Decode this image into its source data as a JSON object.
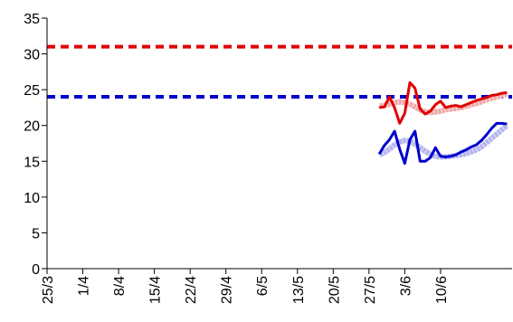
{
  "chart_data": {
    "type": "line",
    "title": "",
    "xlabel": "",
    "ylabel": "",
    "ylim": [
      0,
      35
    ],
    "yticks": [
      0,
      5,
      10,
      15,
      20,
      25,
      30,
      35
    ],
    "xlim": [
      "25/3",
      "24/6"
    ],
    "xtick_labels": [
      "25/3",
      "1/4",
      "8/4",
      "15/4",
      "22/4",
      "29/4",
      "6/5",
      "13/5",
      "20/5",
      "27/5",
      "3/6",
      "10/6"
    ],
    "xtick_dates": [
      "25/3",
      "1/4",
      "8/4",
      "15/4",
      "22/4",
      "29/4",
      "6/5",
      "13/5",
      "20/5",
      "27/5",
      "3/6",
      "10/6"
    ],
    "grid": false,
    "legend": "none",
    "reference_lines": [
      {
        "y": 31,
        "color": "#e00000",
        "style": "dashed"
      },
      {
        "y": 24,
        "color": "#0000cc",
        "style": "dashed"
      }
    ],
    "series": [
      {
        "color": "#f0a8a8",
        "style": "thick-hatched",
        "x": [
          "29/5",
          "30/5",
          "31/5",
          "1/6",
          "2/6",
          "3/6",
          "4/6",
          "5/6",
          "6/6",
          "7/6",
          "8/6",
          "9/6",
          "10/6",
          "11/6",
          "12/6",
          "13/6",
          "14/6",
          "15/6",
          "16/6",
          "17/6",
          "18/6",
          "19/6",
          "20/6",
          "21/6",
          "22/6",
          "23/6"
        ],
        "y": [
          22.7,
          22.8,
          23.0,
          23.2,
          23.3,
          23.2,
          23.0,
          22.6,
          22.2,
          21.9,
          21.8,
          21.9,
          22.0,
          22.2,
          22.3,
          22.4,
          22.5,
          22.7,
          22.9,
          23.1,
          23.3,
          23.6,
          23.8,
          24.0,
          24.2,
          24.4
        ]
      },
      {
        "color": "#e00000",
        "style": "solid",
        "x": [
          "29/5",
          "30/5",
          "31/5",
          "1/6",
          "2/6",
          "3/6",
          "4/6",
          "5/6",
          "6/6",
          "7/6",
          "8/6",
          "9/6",
          "10/6",
          "11/6",
          "12/6",
          "13/6",
          "14/6",
          "15/6",
          "16/6",
          "17/6",
          "18/6",
          "19/6",
          "20/6",
          "21/6",
          "22/6",
          "23/6"
        ],
        "y": [
          22.5,
          22.6,
          24.0,
          22.5,
          20.3,
          21.7,
          26.0,
          25.2,
          22.3,
          21.6,
          22.0,
          22.9,
          23.4,
          22.5,
          22.7,
          22.8,
          22.6,
          22.9,
          23.2,
          23.5,
          23.7,
          23.9,
          24.2,
          24.3,
          24.5,
          24.6
        ]
      },
      {
        "color": "#b4b4ee",
        "style": "thick-hatched",
        "x": [
          "29/5",
          "30/5",
          "31/5",
          "1/6",
          "2/6",
          "3/6",
          "4/6",
          "5/6",
          "6/6",
          "7/6",
          "8/6",
          "9/6",
          "10/6",
          "11/6",
          "12/6",
          "13/6",
          "14/6",
          "15/6",
          "16/6",
          "17/6",
          "18/6",
          "19/6",
          "20/6",
          "21/6",
          "22/6",
          "23/6"
        ],
        "y": [
          15.9,
          16.2,
          16.7,
          17.3,
          17.7,
          17.9,
          17.8,
          17.4,
          16.9,
          16.4,
          16.0,
          15.7,
          15.6,
          15.6,
          15.7,
          15.8,
          15.9,
          16.1,
          16.3,
          16.6,
          17.0,
          17.6,
          18.2,
          18.8,
          19.4,
          20.0
        ]
      },
      {
        "color": "#0000cc",
        "style": "solid",
        "x": [
          "29/5",
          "30/5",
          "31/5",
          "1/6",
          "2/6",
          "3/6",
          "4/6",
          "5/6",
          "6/6",
          "7/6",
          "8/6",
          "9/6",
          "10/6",
          "11/6",
          "12/6",
          "13/6",
          "14/6",
          "15/6",
          "16/6",
          "17/6",
          "18/6",
          "19/6",
          "20/6",
          "21/6",
          "22/6",
          "23/6"
        ],
        "y": [
          16.0,
          17.2,
          18.0,
          19.2,
          16.7,
          14.7,
          18.0,
          19.2,
          15.0,
          15.0,
          15.5,
          16.9,
          15.7,
          15.6,
          15.7,
          15.9,
          16.3,
          16.6,
          17.0,
          17.3,
          17.9,
          18.7,
          19.6,
          20.3,
          20.3,
          20.2
        ]
      }
    ]
  }
}
